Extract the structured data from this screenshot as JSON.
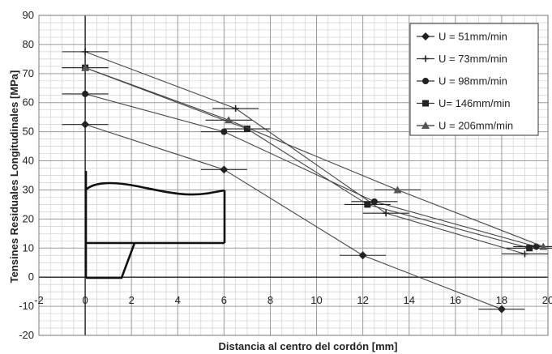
{
  "chart_data": {
    "type": "scatter",
    "xlabel": "Distancia al centro del cordón [mm]",
    "ylabel": "Tensines Residuales Longitudinales [MPa]",
    "xlim": [
      -2,
      20
    ],
    "ylim": [
      -20,
      90
    ],
    "xticks": [
      -2,
      0,
      2,
      4,
      6,
      8,
      10,
      12,
      14,
      16,
      18,
      20
    ],
    "yticks": [
      -20,
      -10,
      0,
      10,
      20,
      30,
      40,
      50,
      60,
      70,
      80,
      90
    ],
    "grid": true,
    "legend_position": "top-right",
    "series": [
      {
        "name": "U = 51mm/min",
        "marker": "diamond",
        "x": [
          0,
          6,
          12,
          18
        ],
        "y": [
          52.5,
          37,
          7.5,
          -11
        ],
        "xerr": 1
      },
      {
        "name": "U = 73mm/min",
        "marker": "plus",
        "x": [
          0,
          6.5,
          13,
          19
        ],
        "y": [
          77.5,
          58,
          22,
          8
        ],
        "xerr": 1
      },
      {
        "name": "U = 98mm/min",
        "marker": "circle",
        "x": [
          0,
          6,
          12.5,
          19.5
        ],
        "y": [
          63,
          50,
          26,
          10.5
        ],
        "xerr": 1
      },
      {
        "name": "U= 146mm/min",
        "marker": "square",
        "x": [
          0,
          7,
          12.2,
          19.2
        ],
        "y": [
          72,
          51,
          25,
          10
        ],
        "xerr": 1
      },
      {
        "name": "U = 206mm/min",
        "marker": "triangle",
        "x": [
          0,
          6.2,
          13.5,
          19.8
        ],
        "y": [
          72,
          54,
          30,
          10.5
        ],
        "xerr": 1
      }
    ]
  }
}
